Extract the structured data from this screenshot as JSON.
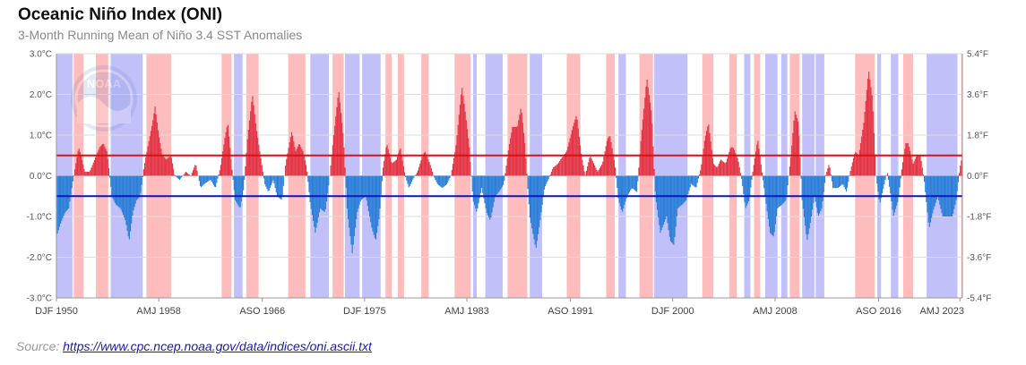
{
  "title": "Oceanic Niño Index (ONI)",
  "subtitle": "3-Month Running Mean of Niño 3.4 SST Anomalies",
  "source": {
    "prefix": "Source: ",
    "link_text": "https://www.cpc.ncep.noaa.gov/data/indices/oni.ascii.txt"
  },
  "logo": {
    "text": "NOAA",
    "icon": "noaa-logo-icon"
  },
  "colors": {
    "positive_bar": "#e23546",
    "negative_bar": "#2b7fd8",
    "el_nino_band": "#ffbcbc",
    "la_nina_band": "#c2c0f9",
    "el_nino_threshold": "#dd1111",
    "la_nina_threshold": "#0a16c4",
    "grid": "#dddddd"
  },
  "chart_data": {
    "type": "bar",
    "x_start_year": 1950,
    "x_end_year": 2023.5,
    "ylim": [
      -3.0,
      3.0
    ],
    "y_ticks_left": [
      "3.0°C",
      "2.0°C",
      "1.0°C",
      "0.0°C",
      "-1.0°C",
      "-2.0°C",
      "-3.0°C"
    ],
    "y_ticks_right": [
      "5.4°F",
      "3.6°F",
      "1.8°F",
      "0.0°F",
      "-1.8°F",
      "-3.6°F",
      "-5.4°F"
    ],
    "x_ticks": [
      {
        "label": "DJF 1950",
        "year": 1950.0
      },
      {
        "label": "AMJ 1958",
        "year": 1958.3
      },
      {
        "label": "ASO 1966",
        "year": 1966.7
      },
      {
        "label": "DJF 1975",
        "year": 1975.0
      },
      {
        "label": "AMJ 1983",
        "year": 1983.3
      },
      {
        "label": "ASO 1991",
        "year": 1991.7
      },
      {
        "label": "DJF 2000",
        "year": 2000.0
      },
      {
        "label": "AMJ 2008",
        "year": 2008.3
      },
      {
        "label": "ASO 2016",
        "year": 2016.7
      },
      {
        "label": "AMJ 2023",
        "year": 2023.3
      }
    ],
    "thresholds": [
      0.5,
      -0.5
    ],
    "el_nino_periods": [
      [
        1951.4,
        1952.2
      ],
      [
        1953.2,
        1954.2
      ],
      [
        1957.3,
        1959.3
      ],
      [
        1963.4,
        1964.2
      ],
      [
        1965.4,
        1966.4
      ],
      [
        1968.8,
        1970.2
      ],
      [
        1972.4,
        1973.3
      ],
      [
        1976.7,
        1977.2
      ],
      [
        1977.7,
        1978.2
      ],
      [
        1979.6,
        1980.2
      ],
      [
        1982.3,
        1983.6
      ],
      [
        1986.6,
        1988.2
      ],
      [
        1991.4,
        1992.5
      ],
      [
        1994.6,
        1995.3
      ],
      [
        1997.3,
        1998.4
      ],
      [
        2002.4,
        2003.3
      ],
      [
        2004.6,
        2005.2
      ],
      [
        2006.6,
        2007.1
      ],
      [
        2009.5,
        2010.3
      ],
      [
        2014.8,
        2016.4
      ],
      [
        2018.7,
        2019.5
      ],
      [
        2023.4,
        2023.5
      ]
    ],
    "la_nina_periods": [
      [
        1950.0,
        1951.3
      ],
      [
        1954.4,
        1957.0
      ],
      [
        1964.4,
        1965.1
      ],
      [
        1970.6,
        1972.1
      ],
      [
        1973.4,
        1974.6
      ],
      [
        1974.8,
        1976.3
      ],
      [
        1983.8,
        1984.1
      ],
      [
        1984.8,
        1986.2
      ],
      [
        1988.4,
        1989.4
      ],
      [
        1995.6,
        1996.2
      ],
      [
        1998.5,
        2001.2
      ],
      [
        2005.8,
        2006.3
      ],
      [
        2007.5,
        2008.5
      ],
      [
        2008.8,
        2009.3
      ],
      [
        2010.5,
        2011.5
      ],
      [
        2011.6,
        2012.3
      ],
      [
        2016.6,
        2016.9
      ],
      [
        2017.7,
        2018.3
      ],
      [
        2020.6,
        2023.1
      ]
    ],
    "anchors": [
      [
        1950.0,
        -1.5
      ],
      [
        1950.3,
        -1.2
      ],
      [
        1950.7,
        -0.9
      ],
      [
        1951.0,
        -0.8
      ],
      [
        1951.3,
        -0.2
      ],
      [
        1951.8,
        0.7
      ],
      [
        1952.0,
        0.5
      ],
      [
        1952.3,
        0.1
      ],
      [
        1952.7,
        0.1
      ],
      [
        1953.1,
        0.4
      ],
      [
        1953.5,
        0.7
      ],
      [
        1953.8,
        0.8
      ],
      [
        1954.1,
        0.6
      ],
      [
        1954.5,
        -0.5
      ],
      [
        1954.8,
        -0.7
      ],
      [
        1955.2,
        -0.8
      ],
      [
        1955.6,
        -1.1
      ],
      [
        1955.9,
        -1.6
      ],
      [
        1956.2,
        -0.9
      ],
      [
        1956.5,
        -0.6
      ],
      [
        1956.8,
        -0.5
      ],
      [
        1957.1,
        0.2
      ],
      [
        1957.4,
        0.7
      ],
      [
        1957.8,
        1.3
      ],
      [
        1958.0,
        1.7
      ],
      [
        1958.3,
        1.0
      ],
      [
        1958.6,
        0.5
      ],
      [
        1958.9,
        0.4
      ],
      [
        1959.3,
        0.5
      ],
      [
        1959.6,
        0.0
      ],
      [
        1960.0,
        -0.1
      ],
      [
        1960.5,
        0.1
      ],
      [
        1960.9,
        0.0
      ],
      [
        1961.3,
        0.3
      ],
      [
        1961.7,
        -0.3
      ],
      [
        1962.0,
        -0.2
      ],
      [
        1962.5,
        -0.1
      ],
      [
        1962.9,
        -0.3
      ],
      [
        1963.3,
        0.2
      ],
      [
        1963.7,
        1.0
      ],
      [
        1963.9,
        1.3
      ],
      [
        1964.2,
        0.3
      ],
      [
        1964.5,
        -0.6
      ],
      [
        1964.9,
        -0.8
      ],
      [
        1965.2,
        -0.3
      ],
      [
        1965.5,
        0.9
      ],
      [
        1965.9,
        2.0
      ],
      [
        1966.2,
        1.2
      ],
      [
        1966.6,
        0.4
      ],
      [
        1966.9,
        -0.2
      ],
      [
        1967.2,
        -0.4
      ],
      [
        1967.6,
        -0.1
      ],
      [
        1967.9,
        -0.5
      ],
      [
        1968.3,
        -0.6
      ],
      [
        1968.6,
        0.3
      ],
      [
        1968.9,
        0.8
      ],
      [
        1969.1,
        1.1
      ],
      [
        1969.4,
        0.6
      ],
      [
        1969.7,
        0.8
      ],
      [
        1970.0,
        0.6
      ],
      [
        1970.3,
        0.2
      ],
      [
        1970.6,
        -0.7
      ],
      [
        1971.0,
        -1.4
      ],
      [
        1971.4,
        -0.8
      ],
      [
        1971.8,
        -0.9
      ],
      [
        1972.1,
        -0.2
      ],
      [
        1972.5,
        1.0
      ],
      [
        1972.9,
        2.1
      ],
      [
        1973.3,
        0.9
      ],
      [
        1973.6,
        -0.9
      ],
      [
        1974.0,
        -1.9
      ],
      [
        1974.4,
        -0.9
      ],
      [
        1974.7,
        -0.6
      ],
      [
        1975.1,
        -0.5
      ],
      [
        1975.6,
        -1.3
      ],
      [
        1975.9,
        -1.6
      ],
      [
        1976.2,
        -1.0
      ],
      [
        1976.5,
        0.2
      ],
      [
        1976.8,
        0.8
      ],
      [
        1977.2,
        0.3
      ],
      [
        1977.6,
        0.4
      ],
      [
        1977.9,
        0.7
      ],
      [
        1978.3,
        0.0
      ],
      [
        1978.6,
        -0.3
      ],
      [
        1978.9,
        -0.1
      ],
      [
        1979.3,
        0.1
      ],
      [
        1979.7,
        0.5
      ],
      [
        1979.9,
        0.6
      ],
      [
        1980.3,
        0.3
      ],
      [
        1980.6,
        0.0
      ],
      [
        1980.9,
        -0.2
      ],
      [
        1981.3,
        -0.3
      ],
      [
        1981.7,
        -0.2
      ],
      [
        1982.0,
        0.0
      ],
      [
        1982.4,
        0.7
      ],
      [
        1982.9,
        2.2
      ],
      [
        1983.2,
        1.5
      ],
      [
        1983.5,
        0.7
      ],
      [
        1983.8,
        -0.6
      ],
      [
        1984.1,
        -0.9
      ],
      [
        1984.5,
        -0.3
      ],
      [
        1984.9,
        -0.9
      ],
      [
        1985.2,
        -1.1
      ],
      [
        1985.6,
        -0.5
      ],
      [
        1985.9,
        -0.4
      ],
      [
        1986.3,
        -0.2
      ],
      [
        1986.7,
        0.7
      ],
      [
        1987.0,
        1.2
      ],
      [
        1987.4,
        1.2
      ],
      [
        1987.7,
        1.7
      ],
      [
        1988.0,
        0.8
      ],
      [
        1988.4,
        -1.0
      ],
      [
        1988.9,
        -1.8
      ],
      [
        1989.2,
        -1.2
      ],
      [
        1989.6,
        -0.3
      ],
      [
        1989.9,
        -0.1
      ],
      [
        1990.3,
        0.2
      ],
      [
        1990.7,
        0.3
      ],
      [
        1990.9,
        0.4
      ],
      [
        1991.4,
        0.6
      ],
      [
        1991.9,
        1.2
      ],
      [
        1992.2,
        1.5
      ],
      [
        1992.6,
        0.5
      ],
      [
        1992.9,
        0.0
      ],
      [
        1993.3,
        0.5
      ],
      [
        1993.6,
        0.3
      ],
      [
        1993.9,
        0.1
      ],
      [
        1994.3,
        0.3
      ],
      [
        1994.7,
        0.9
      ],
      [
        1994.9,
        1.0
      ],
      [
        1995.3,
        0.3
      ],
      [
        1995.6,
        -0.6
      ],
      [
        1995.9,
        -0.9
      ],
      [
        1996.3,
        -0.5
      ],
      [
        1996.7,
        -0.3
      ],
      [
        1997.1,
        -0.4
      ],
      [
        1997.4,
        0.8
      ],
      [
        1997.9,
        2.4
      ],
      [
        1998.3,
        1.5
      ],
      [
        1998.6,
        -0.5
      ],
      [
        1999.0,
        -1.4
      ],
      [
        1999.5,
        -1.0
      ],
      [
        1999.8,
        -1.6
      ],
      [
        2000.1,
        -1.7
      ],
      [
        2000.4,
        -0.8
      ],
      [
        2000.8,
        -0.7
      ],
      [
        2001.1,
        -0.6
      ],
      [
        2001.5,
        -0.2
      ],
      [
        2001.9,
        -0.3
      ],
      [
        2002.3,
        0.2
      ],
      [
        2002.6,
        0.9
      ],
      [
        2002.9,
        1.3
      ],
      [
        2003.3,
        0.3
      ],
      [
        2003.6,
        0.2
      ],
      [
        2003.9,
        0.4
      ],
      [
        2004.3,
        0.3
      ],
      [
        2004.7,
        0.7
      ],
      [
        2004.9,
        0.7
      ],
      [
        2005.3,
        0.4
      ],
      [
        2005.6,
        -0.1
      ],
      [
        2005.9,
        -0.8
      ],
      [
        2006.2,
        -0.6
      ],
      [
        2006.5,
        0.1
      ],
      [
        2006.9,
        0.9
      ],
      [
        2007.2,
        0.2
      ],
      [
        2007.5,
        -0.5
      ],
      [
        2007.9,
        -1.4
      ],
      [
        2008.2,
        -1.5
      ],
      [
        2008.5,
        -0.8
      ],
      [
        2008.9,
        -0.7
      ],
      [
        2009.2,
        -0.6
      ],
      [
        2009.6,
        0.5
      ],
      [
        2009.9,
        1.6
      ],
      [
        2010.2,
        1.3
      ],
      [
        2010.5,
        -0.6
      ],
      [
        2010.9,
        -1.6
      ],
      [
        2011.2,
        -1.1
      ],
      [
        2011.5,
        -0.5
      ],
      [
        2011.8,
        -1.0
      ],
      [
        2012.1,
        -0.8
      ],
      [
        2012.4,
        0.0
      ],
      [
        2012.7,
        0.3
      ],
      [
        2013.0,
        -0.3
      ],
      [
        2013.4,
        -0.3
      ],
      [
        2013.8,
        -0.2
      ],
      [
        2014.1,
        -0.4
      ],
      [
        2014.4,
        0.1
      ],
      [
        2014.8,
        0.6
      ],
      [
        2015.1,
        0.5
      ],
      [
        2015.5,
        1.3
      ],
      [
        2015.9,
        2.6
      ],
      [
        2016.2,
        1.9
      ],
      [
        2016.5,
        0.0
      ],
      [
        2016.8,
        -0.7
      ],
      [
        2017.1,
        -0.3
      ],
      [
        2017.4,
        0.1
      ],
      [
        2017.7,
        -0.5
      ],
      [
        2017.9,
        -1.0
      ],
      [
        2018.3,
        -0.6
      ],
      [
        2018.6,
        0.2
      ],
      [
        2018.9,
        0.8
      ],
      [
        2019.1,
        0.8
      ],
      [
        2019.5,
        0.3
      ],
      [
        2019.8,
        0.5
      ],
      [
        2020.1,
        0.5
      ],
      [
        2020.4,
        -0.1
      ],
      [
        2020.8,
        -1.3
      ],
      [
        2021.1,
        -0.9
      ],
      [
        2021.5,
        -0.5
      ],
      [
        2021.9,
        -1.0
      ],
      [
        2022.3,
        -1.0
      ],
      [
        2022.7,
        -1.0
      ],
      [
        2023.0,
        -0.6
      ],
      [
        2023.3,
        0.2
      ],
      [
        2023.5,
        0.5
      ]
    ],
    "xlabel": "",
    "ylabel": ""
  }
}
